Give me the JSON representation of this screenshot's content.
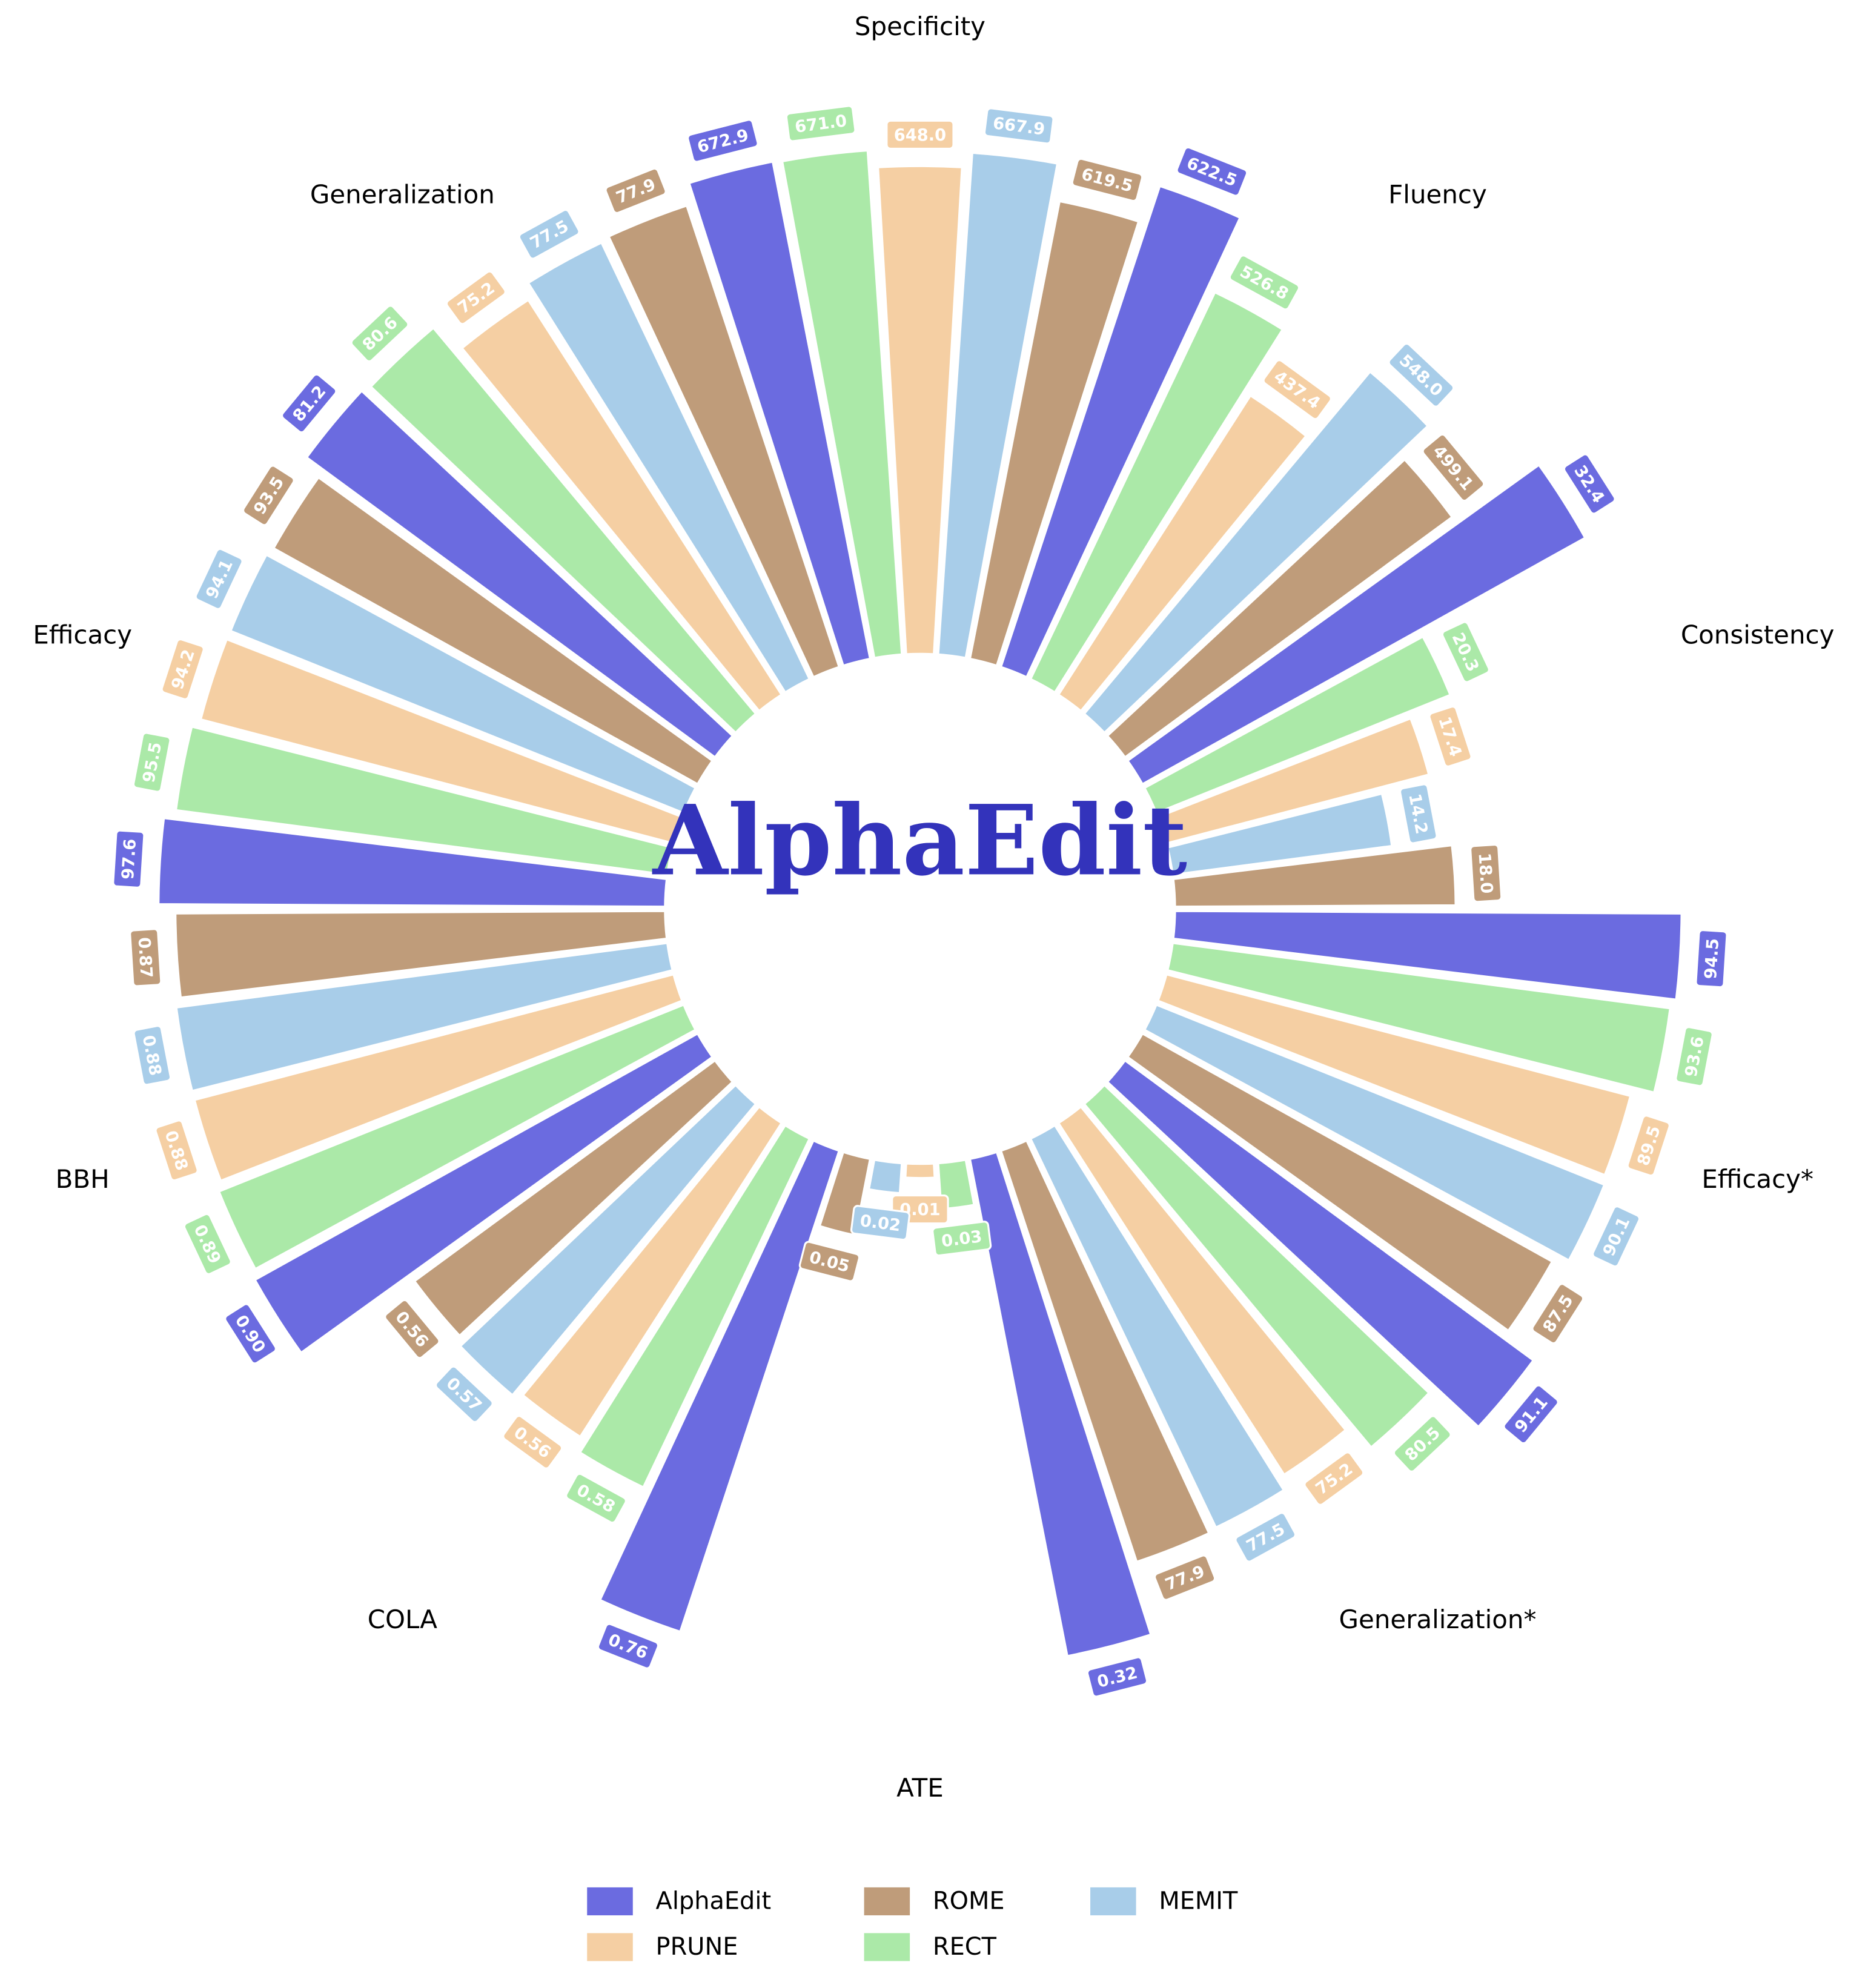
{
  "chart_data": {
    "type": "radial_bar",
    "center_text": "AlphaEdit",
    "categories": [
      "Specificity",
      "Fluency",
      "Consistency",
      "Efficacy*",
      "Generalization*",
      "ATE",
      "COLA",
      "BBH",
      "Efficacy",
      "Generalization"
    ],
    "series": [
      {
        "name": "AlphaEdit",
        "color": "#6b6be0",
        "values": [
          672.9,
          622.5,
          32.4,
          94.5,
          91.1,
          0.32,
          0.76,
          0.9,
          97.6,
          81.2
        ],
        "value_labels": [
          "672.9",
          "622.5",
          "32.4",
          "94.5",
          "91.1",
          "0.32",
          "0.76",
          "0.90",
          "97.6",
          "81.2"
        ]
      },
      {
        "name": "RECT",
        "color": "#abe9a8",
        "values": [
          671.0,
          526.8,
          20.3,
          93.6,
          80.5,
          0.03,
          0.58,
          0.89,
          95.5,
          80.6
        ],
        "value_labels": [
          "671.0",
          "526.8",
          "20.3",
          "93.6",
          "80.5",
          "0.03",
          "0.58",
          "0.89",
          "95.5",
          "80.6"
        ]
      },
      {
        "name": "PRUNE",
        "color": "#f5cfa3",
        "values": [
          648.0,
          437.4,
          17.4,
          89.5,
          75.2,
          0.01,
          0.56,
          0.88,
          94.2,
          75.2
        ],
        "value_labels": [
          "648.0",
          "437.4",
          "17.4",
          "89.5",
          "75.2",
          "0.01",
          "0.56",
          "0.88",
          "94.2",
          "75.2"
        ]
      },
      {
        "name": "MEMIT",
        "color": "#a8cde9",
        "values": [
          667.9,
          548.0,
          14.2,
          90.1,
          77.5,
          0.02,
          0.57,
          0.88,
          94.1,
          77.5
        ],
        "value_labels": [
          "667.9",
          "548.0",
          "14.2",
          "90.1",
          "77.5",
          "0.02",
          "0.57",
          "0.88",
          "94.1",
          "77.5"
        ]
      },
      {
        "name": "ROME",
        "color": "#bf9c7a",
        "values": [
          619.5,
          499.1,
          18.0,
          87.5,
          77.9,
          0.05,
          0.56,
          0.87,
          93.5,
          77.9
        ],
        "value_labels": [
          "619.5",
          "499.1",
          "18.0",
          "87.5",
          "77.9",
          "0.05",
          "0.56",
          "0.87",
          "93.5",
          "77.9"
        ]
      }
    ]
  }
}
